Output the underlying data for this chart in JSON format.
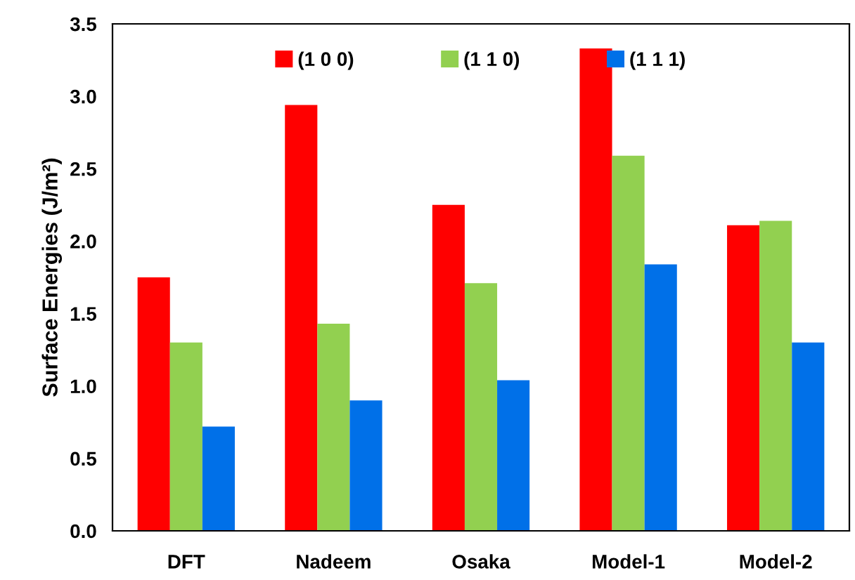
{
  "chart_data": {
    "type": "bar",
    "ylabel": "Surface Energies (J/m²)",
    "categories": [
      "DFT",
      "Nadeem",
      "Osaka",
      "Model-1",
      "Model-2"
    ],
    "series": [
      {
        "name": "(1 0 0)",
        "color": "#ff0000",
        "values": [
          1.75,
          2.94,
          2.25,
          3.33,
          2.11
        ]
      },
      {
        "name": "(1 1 0)",
        "color": "#92d050",
        "values": [
          1.3,
          1.43,
          1.71,
          2.59,
          2.14
        ]
      },
      {
        "name": "(1 1 1)",
        "color": "#0070e8",
        "values": [
          0.72,
          0.9,
          1.04,
          1.84,
          1.3
        ]
      }
    ],
    "ylim": [
      0,
      3.5
    ],
    "yticks": [
      {
        "value": 0,
        "label": "0.0"
      },
      0.5,
      {
        "value": 1,
        "label": "1.0"
      },
      1.5,
      {
        "value": 2,
        "label": "2.0"
      },
      2.5,
      {
        "value": 3,
        "label": "3.0"
      },
      3.5
    ],
    "grid": false,
    "legend": "top"
  }
}
